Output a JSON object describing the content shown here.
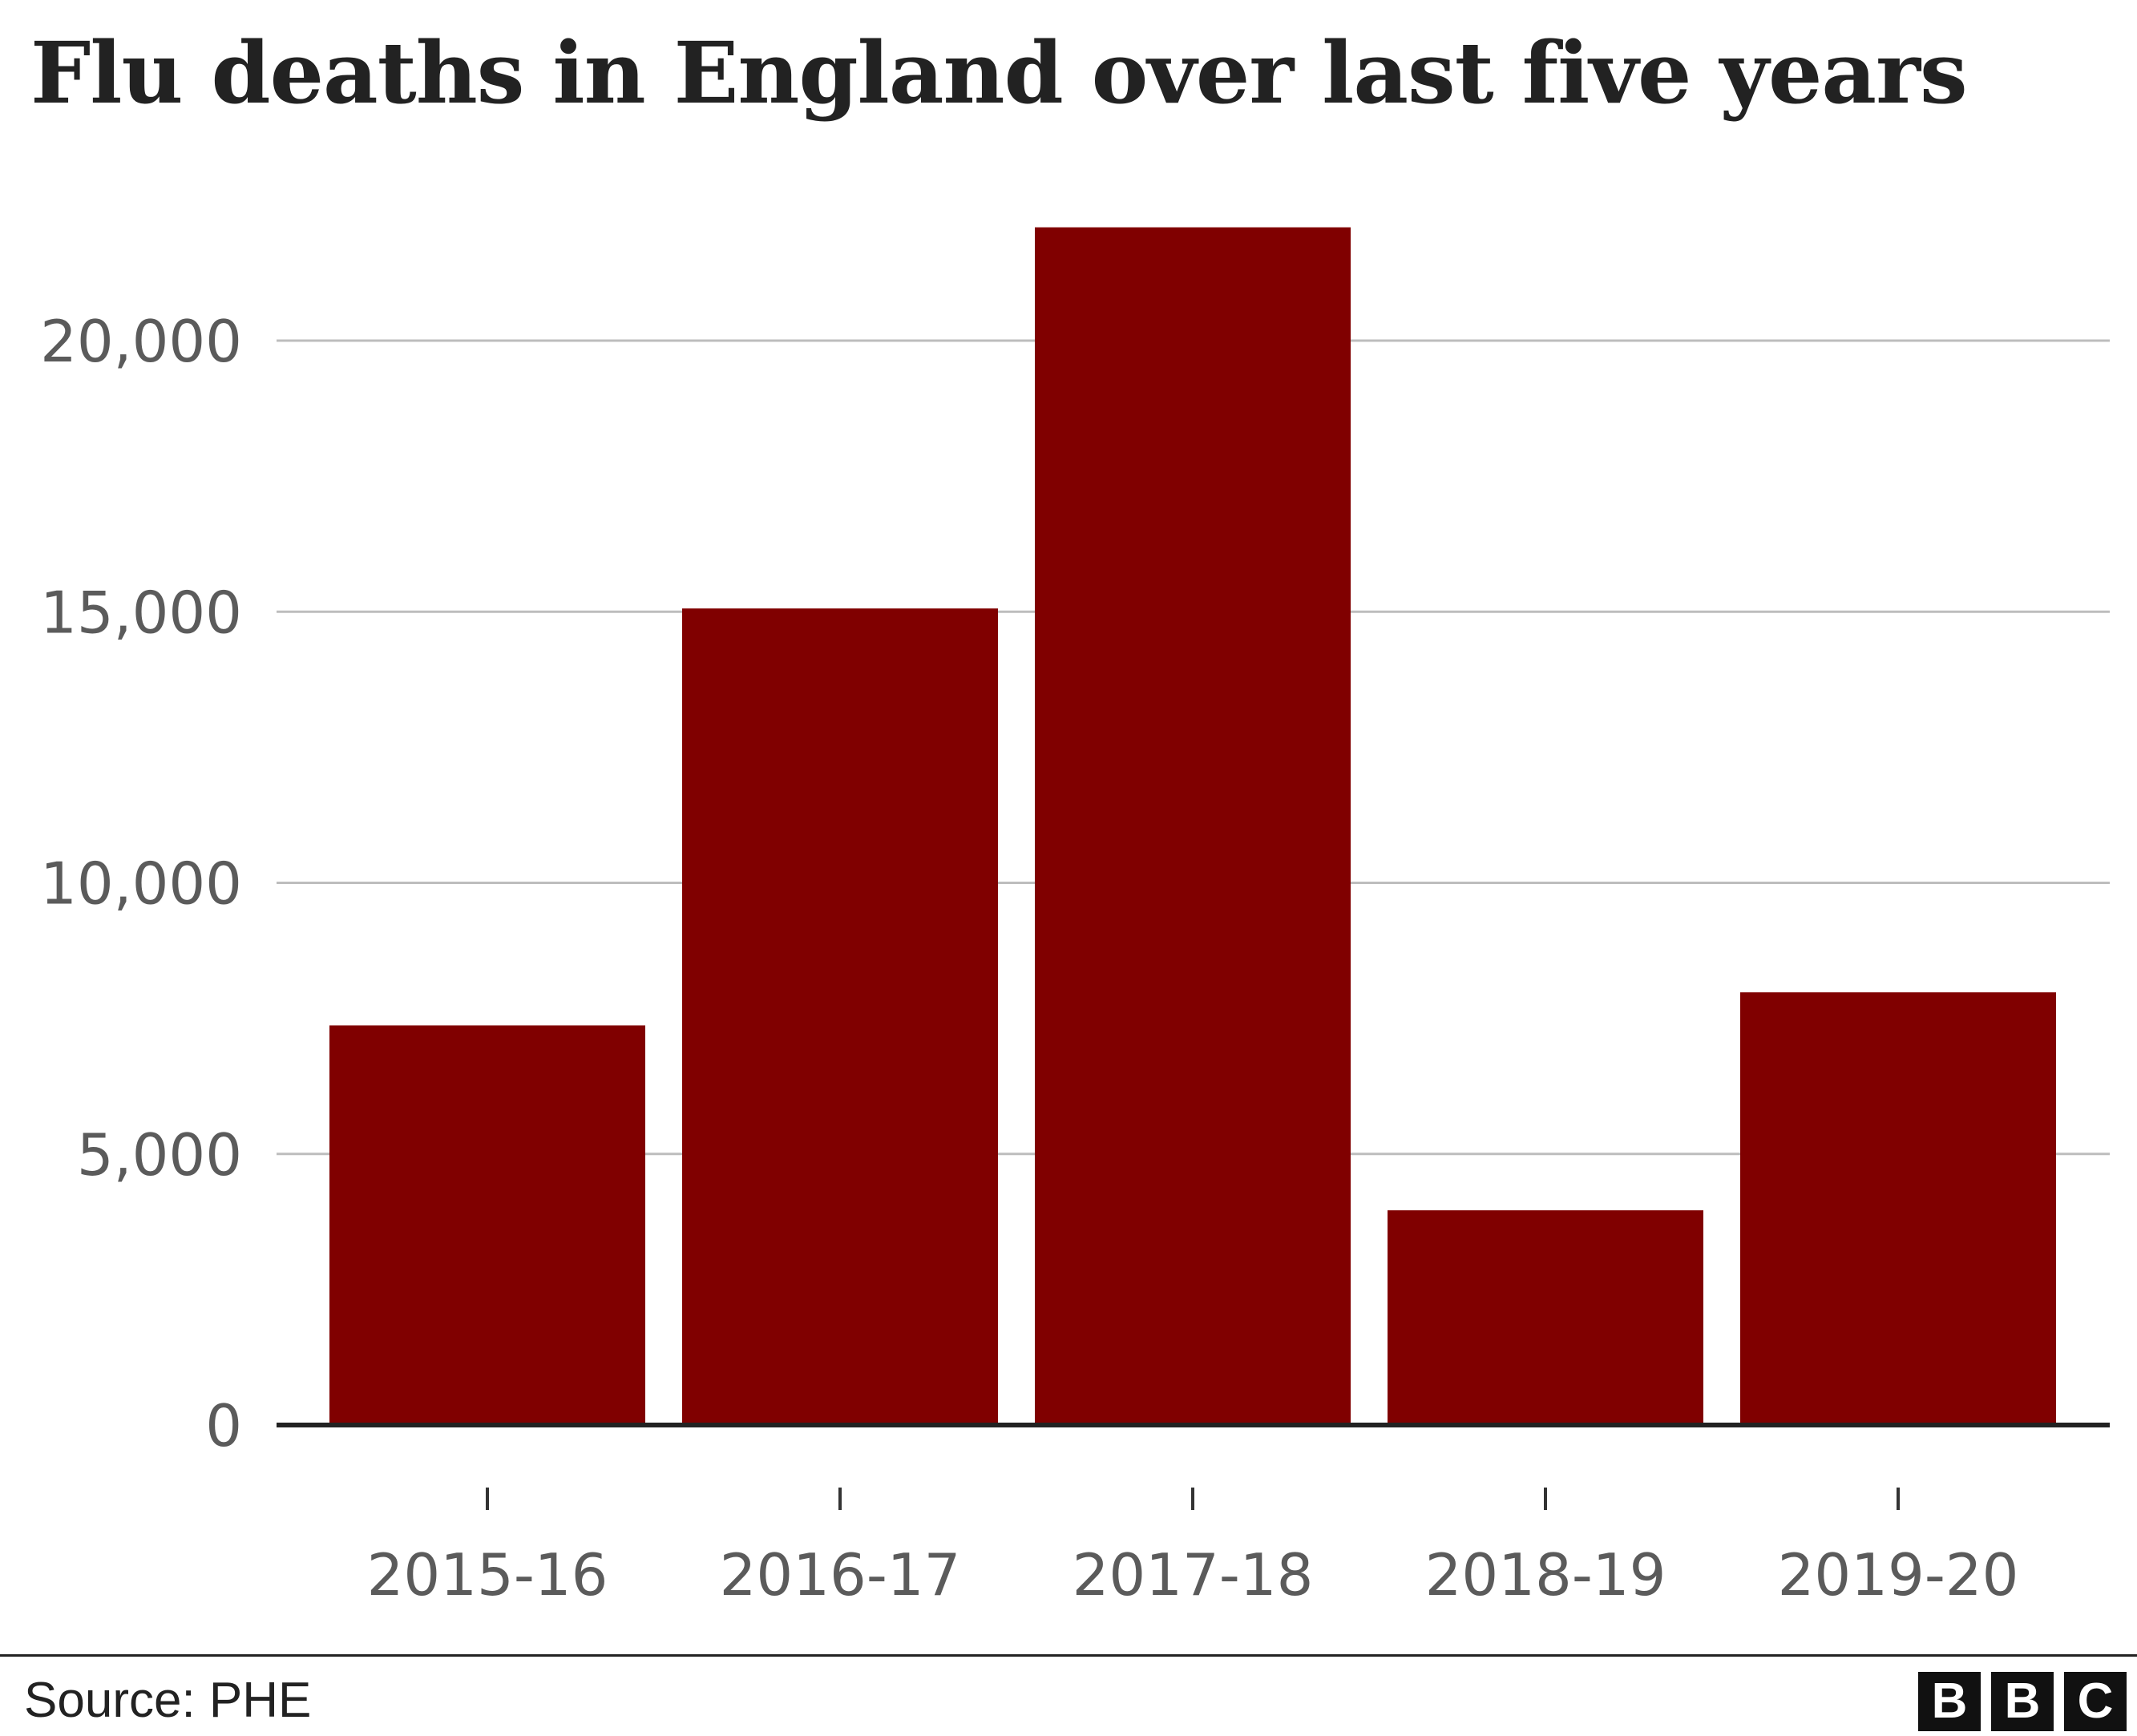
{
  "title": "Flu deaths in England over last five years",
  "source": "Source: PHE",
  "brand": {
    "logo_letters": [
      "B",
      "B",
      "C"
    ]
  },
  "colors": {
    "bar": "#800000",
    "grid": "#bdbdbd",
    "axis": "#222222",
    "tick_text": "#5b5b5b"
  },
  "chart_data": {
    "type": "bar",
    "categories": [
      "2015-16",
      "2016-17",
      "2017-18",
      "2018-19",
      "2019-20"
    ],
    "values": [
      7370,
      15060,
      22090,
      3960,
      7980
    ],
    "title": "Flu deaths in England over last five years",
    "xlabel": "",
    "ylabel": "",
    "ylim": [
      0,
      22500
    ],
    "yticks": [
      0,
      5000,
      10000,
      15000,
      20000
    ],
    "ytick_labels": [
      "0",
      "5,000",
      "10,000",
      "15,000",
      "20,000"
    ],
    "grid": true,
    "legend": "none"
  }
}
